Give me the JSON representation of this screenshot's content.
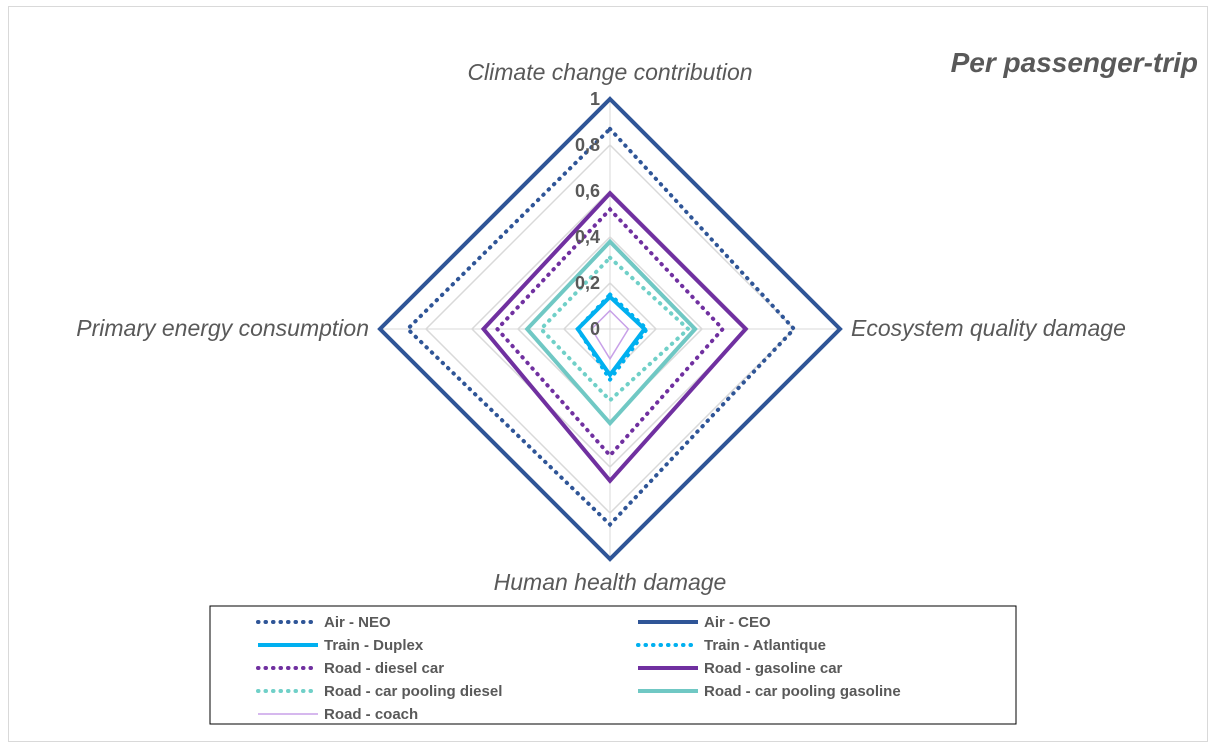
{
  "chart_data": {
    "type": "radar",
    "title": "Per passenger-trip",
    "axes": [
      "Climate change contribution",
      "Ecosystem quality damage",
      "Human health damage",
      "Primary energy consumption"
    ],
    "rlim": [
      0,
      1
    ],
    "ticks": [
      "0",
      "0,2",
      "0,4",
      "0,6",
      "0,8",
      "1"
    ],
    "tick_values": [
      0,
      0.2,
      0.4,
      0.6,
      0.8,
      1
    ],
    "grid": true,
    "legend_position": "bottom",
    "series": [
      {
        "name": "Air - NEO",
        "values": [
          0.87,
          0.8,
          0.85,
          0.88
        ],
        "color": "#2f5597",
        "style": "dotted"
      },
      {
        "name": "Air - CEO",
        "values": [
          1.0,
          1.0,
          1.0,
          1.0
        ],
        "color": "#2f5597",
        "style": "solid"
      },
      {
        "name": "Train - Duplex",
        "values": [
          0.14,
          0.15,
          0.2,
          0.14
        ],
        "color": "#00b0f0",
        "style": "solid"
      },
      {
        "name": "Train - Atlantique",
        "values": [
          0.15,
          0.16,
          0.22,
          0.14
        ],
        "color": "#00b0f0",
        "style": "dotted"
      },
      {
        "name": "Road - diesel car",
        "values": [
          0.52,
          0.49,
          0.55,
          0.49
        ],
        "color": "#7030a0",
        "style": "dotted"
      },
      {
        "name": "Road - gasoline car",
        "values": [
          0.59,
          0.59,
          0.66,
          0.55
        ],
        "color": "#7030a0",
        "style": "solid"
      },
      {
        "name": "Road - car pooling diesel",
        "values": [
          0.31,
          0.34,
          0.31,
          0.3
        ],
        "color": "#70d0c8",
        "style": "dotted"
      },
      {
        "name": "Road - car pooling gasoline",
        "values": [
          0.38,
          0.37,
          0.41,
          0.36
        ],
        "color": "#70c8c4",
        "style": "solid"
      },
      {
        "name": "Road - coach",
        "values": [
          0.08,
          0.08,
          0.13,
          0.08
        ],
        "color": "#c8a0e8",
        "style": "solid"
      }
    ]
  }
}
